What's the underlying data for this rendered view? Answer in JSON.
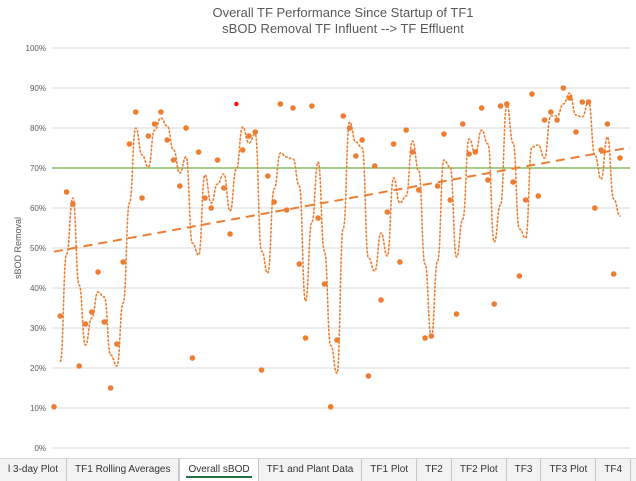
{
  "chart_data": {
    "type": "scatter",
    "title_line1": "Overall TF Performance Since Startup of TF1",
    "title_line2": "sBOD Removal TF Influent --> TF Effluent",
    "ylabel": "sBOD Removal",
    "xlabel": "",
    "ylim": [
      0,
      100
    ],
    "yticks": [
      "0%",
      "10%",
      "20%",
      "30%",
      "40%",
      "50%",
      "60%",
      "70%",
      "80%",
      "90%",
      "100%"
    ],
    "target_line": 70,
    "moving_average_period": 2,
    "values": [
      10.3,
      33,
      64,
      61,
      20.5,
      31,
      34,
      44,
      31.5,
      15,
      26,
      46.5,
      76,
      84,
      62.5,
      78,
      81,
      84,
      77,
      72,
      65.5,
      80,
      22.5,
      74,
      62.5,
      60,
      72,
      65,
      53.5,
      86,
      74.5,
      78,
      79,
      19.5,
      68,
      61.5,
      86,
      59.5,
      85,
      46,
      27.5,
      85.5,
      57.5,
      41,
      10.3,
      27,
      83,
      80,
      73,
      77,
      18,
      70.5,
      37,
      59,
      76,
      46.5,
      79.5,
      74,
      64.5,
      27.5,
      28,
      65.5,
      78.5,
      62,
      33.5,
      81,
      73.5,
      74,
      85,
      67,
      36,
      85.5,
      86,
      66.5,
      43,
      62,
      88.5,
      63,
      82,
      84,
      82,
      90,
      87.5,
      79,
      86.5,
      86.5,
      60,
      74.5,
      81,
      43.5,
      72.5
    ],
    "highlight_index": 29,
    "colors": {
      "points": "#ed7d31",
      "highlight": "#ff0000",
      "target": "#70ad47",
      "grid": "#d9d9d9"
    }
  },
  "tabs": [
    "l 3-day Plot",
    "TF1 Rolling Averages",
    "Overall sBOD",
    "TF1 and Plant Data",
    "TF1 Plot",
    "TF2",
    "TF2 Plot",
    "TF3",
    "TF3 Plot",
    "TF4"
  ],
  "active_tab": "Overall sBOD",
  "controls": {
    "more": "···",
    "add": "+",
    "menu": "⋮"
  }
}
